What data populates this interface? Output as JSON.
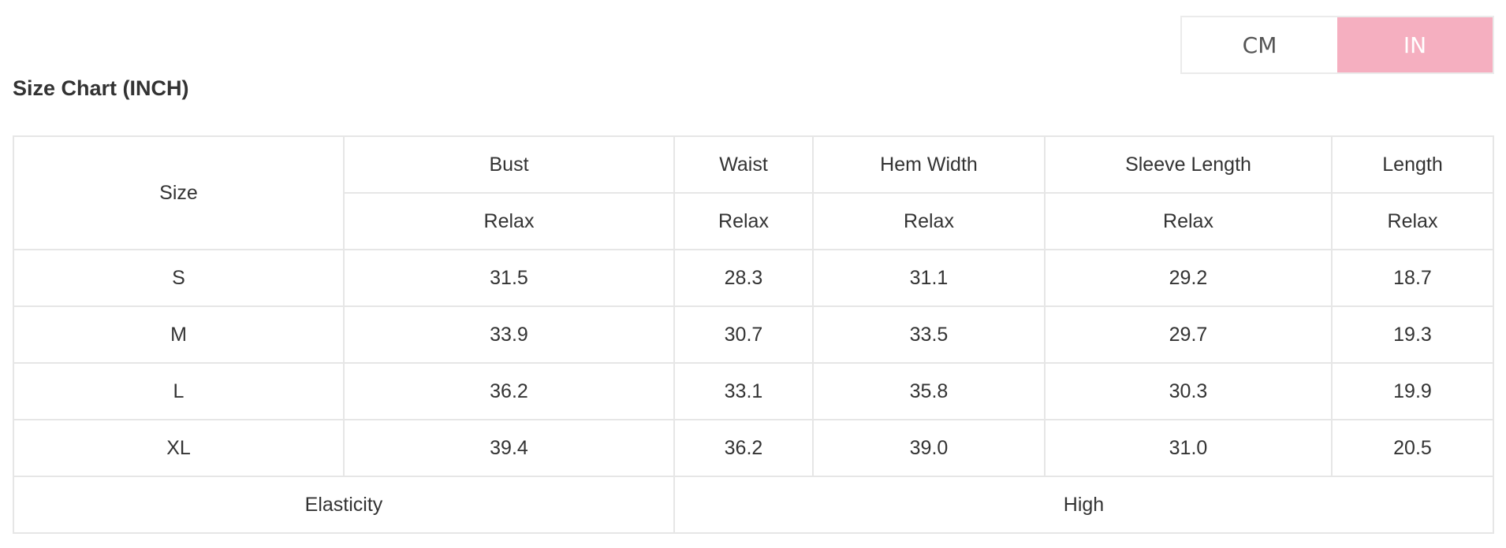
{
  "unit_toggle": {
    "options": [
      "CM",
      "IN"
    ],
    "selected": "IN",
    "active_color": "#f5afc0"
  },
  "title": "Size Chart (INCH)",
  "table": {
    "size_header": "Size",
    "columns": [
      "Bust",
      "Waist",
      "Hem Width",
      "Sleeve Length",
      "Length"
    ],
    "subheaders": [
      "Relax",
      "Relax",
      "Relax",
      "Relax",
      "Relax"
    ],
    "rows": [
      {
        "size": "S",
        "values": [
          "31.5",
          "28.3",
          "31.1",
          "29.2",
          "18.7"
        ]
      },
      {
        "size": "M",
        "values": [
          "33.9",
          "30.7",
          "33.5",
          "29.7",
          "19.3"
        ]
      },
      {
        "size": "L",
        "values": [
          "36.2",
          "33.1",
          "35.8",
          "30.3",
          "19.9"
        ]
      },
      {
        "size": "XL",
        "values": [
          "39.4",
          "36.2",
          "39.0",
          "31.0",
          "20.5"
        ]
      }
    ],
    "footer": {
      "label": "Elasticity",
      "value": "High"
    }
  }
}
